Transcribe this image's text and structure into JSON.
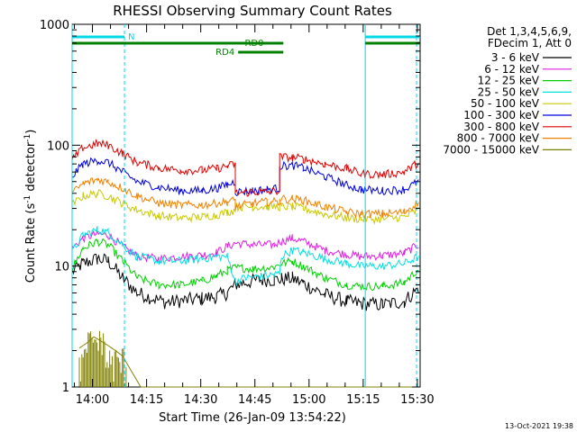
{
  "chart_data": {
    "type": "line",
    "title": "RHESSI Observing Summary Count Rates",
    "xlabel": "Start Time (26-Jan-09 13:54:22)",
    "ylabel_parts": [
      "Count Rate (s",
      "-1",
      " detector",
      "-1",
      ")"
    ],
    "y_scale": "log",
    "ylim": [
      1,
      1000
    ],
    "y_ticks": [
      {
        "value": 1,
        "label": "1"
      },
      {
        "value": 10,
        "label": "10"
      },
      {
        "value": 100,
        "label": "100"
      },
      {
        "value": 1000,
        "label": "1000"
      }
    ],
    "x_unit": "minutes after 13:54:22",
    "xlim": [
      0,
      96.4
    ],
    "x_ticks": [
      {
        "value": 5.63,
        "label": "14:00"
      },
      {
        "value": 20.63,
        "label": "14:15"
      },
      {
        "value": 35.63,
        "label": "14:30"
      },
      {
        "value": 50.63,
        "label": "14:45"
      },
      {
        "value": 65.63,
        "label": "15:00"
      },
      {
        "value": 80.63,
        "label": "15:15"
      },
      {
        "value": 95.63,
        "label": "15:30"
      }
    ],
    "x_minor_step": 5,
    "legend_header": [
      "Det 1,3,4,5,6,9,",
      "FDecim 1, Att 0"
    ],
    "legend_position": "right",
    "series": [
      {
        "name": "3 - 6 keV",
        "color": "#000000",
        "points": [
          [
            0,
            9
          ],
          [
            3,
            10.5
          ],
          [
            7,
            11.5
          ],
          [
            10,
            11
          ],
          [
            14,
            8
          ],
          [
            18,
            6
          ],
          [
            26,
            5
          ],
          [
            36,
            5.4
          ],
          [
            40,
            5.6
          ],
          [
            43,
            6
          ],
          [
            45.2,
            7.1
          ],
          [
            47,
            7.2
          ],
          [
            52,
            7.7
          ],
          [
            56,
            7.7
          ],
          [
            58,
            7.8
          ],
          [
            61,
            7.9
          ],
          [
            64,
            7.2
          ],
          [
            70,
            5.8
          ],
          [
            76,
            5.1
          ],
          [
            80,
            4.9
          ],
          [
            86,
            4.8
          ],
          [
            92,
            5.1
          ],
          [
            96,
            6.6
          ]
        ]
      },
      {
        "name": "6 - 12 keV",
        "color": "#e020e0",
        "points": [
          [
            0,
            14
          ],
          [
            3,
            17
          ],
          [
            7,
            18.5
          ],
          [
            10,
            18
          ],
          [
            14,
            14.5
          ],
          [
            18,
            12
          ],
          [
            24,
            11.5
          ],
          [
            30,
            12
          ],
          [
            36,
            12.3
          ],
          [
            40,
            13
          ],
          [
            43,
            14.5
          ],
          [
            45.2,
            15.5
          ],
          [
            50,
            15
          ],
          [
            56,
            15
          ],
          [
            58,
            16
          ],
          [
            61,
            17
          ],
          [
            64,
            16
          ],
          [
            70,
            13.5
          ],
          [
            76,
            12.5
          ],
          [
            80,
            12
          ],
          [
            86,
            12.2
          ],
          [
            92,
            12.8
          ],
          [
            96,
            15
          ]
        ]
      },
      {
        "name": "12 - 25 keV",
        "color": "#00d000",
        "points": [
          [
            0,
            9.5
          ],
          [
            3,
            14
          ],
          [
            7,
            16
          ],
          [
            10,
            15
          ],
          [
            14,
            11
          ],
          [
            18,
            8
          ],
          [
            24,
            7
          ],
          [
            30,
            7
          ],
          [
            36,
            7.5
          ],
          [
            40,
            8.3
          ],
          [
            43,
            9.2
          ],
          [
            45.2,
            9.7
          ],
          [
            50,
            9.5
          ],
          [
            56,
            9.8
          ],
          [
            58,
            10.5
          ],
          [
            61,
            11
          ],
          [
            64,
            10
          ],
          [
            70,
            8
          ],
          [
            76,
            7
          ],
          [
            80,
            6.8
          ],
          [
            86,
            6.8
          ],
          [
            92,
            7.3
          ],
          [
            96,
            9.5
          ]
        ]
      },
      {
        "name": "25 - 50 keV",
        "color": "#00e0e0",
        "points": [
          [
            0,
            13
          ],
          [
            3,
            18
          ],
          [
            7,
            20
          ],
          [
            10,
            19
          ],
          [
            14,
            15
          ],
          [
            18,
            12
          ],
          [
            24,
            11
          ],
          [
            30,
            11
          ],
          [
            36,
            11.5
          ],
          [
            40,
            12
          ],
          [
            43,
            12
          ],
          [
            45.2,
            7.5
          ],
          [
            48,
            8
          ],
          [
            52,
            8.2
          ],
          [
            56,
            8.5
          ],
          [
            57.5,
            8.6
          ],
          [
            58,
            12
          ],
          [
            61,
            13.5
          ],
          [
            64,
            13
          ],
          [
            70,
            11.5
          ],
          [
            76,
            10.5
          ],
          [
            80,
            10
          ],
          [
            86,
            10
          ],
          [
            92,
            10.5
          ],
          [
            96,
            12
          ]
        ]
      },
      {
        "name": "50 - 100 keV",
        "color": "#c8c800",
        "points": [
          [
            0,
            32
          ],
          [
            3,
            38
          ],
          [
            7,
            40
          ],
          [
            10,
            38
          ],
          [
            14,
            33
          ],
          [
            18,
            29
          ],
          [
            24,
            26
          ],
          [
            30,
            25
          ],
          [
            36,
            25.5
          ],
          [
            40,
            26.5
          ],
          [
            43,
            28
          ],
          [
            45.2,
            29
          ],
          [
            45.2,
            31
          ],
          [
            50,
            31
          ],
          [
            54,
            31
          ],
          [
            57.5,
            31
          ],
          [
            58,
            31
          ],
          [
            61,
            31
          ],
          [
            64,
            30
          ],
          [
            70,
            27
          ],
          [
            76,
            25
          ],
          [
            80,
            24.5
          ],
          [
            86,
            24.5
          ],
          [
            92,
            25.5
          ],
          [
            96,
            29
          ]
        ]
      },
      {
        "name": "100 - 300 keV",
        "color": "#0000e0",
        "points": [
          [
            0,
            55
          ],
          [
            3,
            70
          ],
          [
            7,
            75
          ],
          [
            10,
            72
          ],
          [
            14,
            60
          ],
          [
            18,
            50
          ],
          [
            24,
            45
          ],
          [
            30,
            42
          ],
          [
            36,
            42
          ],
          [
            40,
            44
          ],
          [
            43,
            47
          ],
          [
            45.2,
            50
          ],
          [
            45.2,
            41
          ],
          [
            50,
            42
          ],
          [
            54,
            43
          ],
          [
            57.5,
            44
          ],
          [
            57.5,
            67
          ],
          [
            61,
            68
          ],
          [
            64,
            65
          ],
          [
            70,
            55
          ],
          [
            76,
            47
          ],
          [
            80,
            43
          ],
          [
            86,
            42
          ],
          [
            92,
            43
          ],
          [
            96,
            50
          ]
        ]
      },
      {
        "name": "300 - 800 keV",
        "color": "#e00000",
        "points": [
          [
            0,
            75
          ],
          [
            3,
            95
          ],
          [
            7,
            103
          ],
          [
            10,
            100
          ],
          [
            14,
            85
          ],
          [
            18,
            72
          ],
          [
            24,
            65
          ],
          [
            30,
            62
          ],
          [
            36,
            62
          ],
          [
            40,
            64
          ],
          [
            43,
            67
          ],
          [
            45.2,
            70
          ],
          [
            45.2,
            40
          ],
          [
            50,
            41
          ],
          [
            54,
            41
          ],
          [
            57.5,
            42
          ],
          [
            57.5,
            80
          ],
          [
            61,
            79
          ],
          [
            64,
            77
          ],
          [
            70,
            70
          ],
          [
            76,
            64
          ],
          [
            80,
            58
          ],
          [
            86,
            57
          ],
          [
            92,
            60
          ],
          [
            96,
            72
          ]
        ]
      },
      {
        "name": "800 - 7000 keV",
        "color": "#f08000",
        "points": [
          [
            0,
            40
          ],
          [
            3,
            48
          ],
          [
            7,
            52
          ],
          [
            10,
            50
          ],
          [
            14,
            44
          ],
          [
            18,
            38
          ],
          [
            24,
            33
          ],
          [
            30,
            32
          ],
          [
            36,
            32
          ],
          [
            40,
            33
          ],
          [
            43,
            34
          ],
          [
            45.2,
            35
          ],
          [
            45.2,
            31
          ],
          [
            50,
            33
          ],
          [
            54,
            34
          ],
          [
            57.5,
            34
          ],
          [
            57.5,
            36
          ],
          [
            61,
            36
          ],
          [
            64,
            35
          ],
          [
            70,
            31
          ],
          [
            76,
            28
          ],
          [
            80,
            27
          ],
          [
            86,
            27
          ],
          [
            92,
            28
          ],
          [
            96,
            34
          ]
        ]
      },
      {
        "name": "7000 - 15000 keV",
        "color": "#808000",
        "points": [
          [
            2,
            2.1
          ],
          [
            4,
            2.3
          ],
          [
            6,
            2.6
          ],
          [
            8,
            2.4
          ],
          [
            10,
            2.2
          ],
          [
            12,
            2
          ],
          [
            14,
            1.8
          ],
          [
            15,
            1.6
          ],
          [
            19,
            1
          ],
          [
            96,
            1
          ]
        ]
      }
    ],
    "annotations": {
      "night_intervals": [
        [
          0,
          14.5
        ],
        [
          81.2,
          96.4
        ]
      ],
      "night_label": "N",
      "rd0_label": "RD0",
      "rd0_top_segments": [
        [
          0,
          58.5
        ],
        [
          81.2,
          96.4
        ]
      ],
      "rd4_label": "RD4",
      "rd4_segment": [
        46,
        58.5
      ],
      "vertical_markers": [
        {
          "x": 0,
          "style": "solid"
        },
        {
          "x": 14.5,
          "style": "dashed"
        },
        {
          "x": 81.2,
          "style": "solid"
        },
        {
          "x": 95.4,
          "style": "dashed"
        }
      ]
    },
    "footer_timestamp": "13-Oct-2021 19:38",
    "colors": {
      "cyan": "#00d8e8",
      "green": "#008000"
    }
  }
}
